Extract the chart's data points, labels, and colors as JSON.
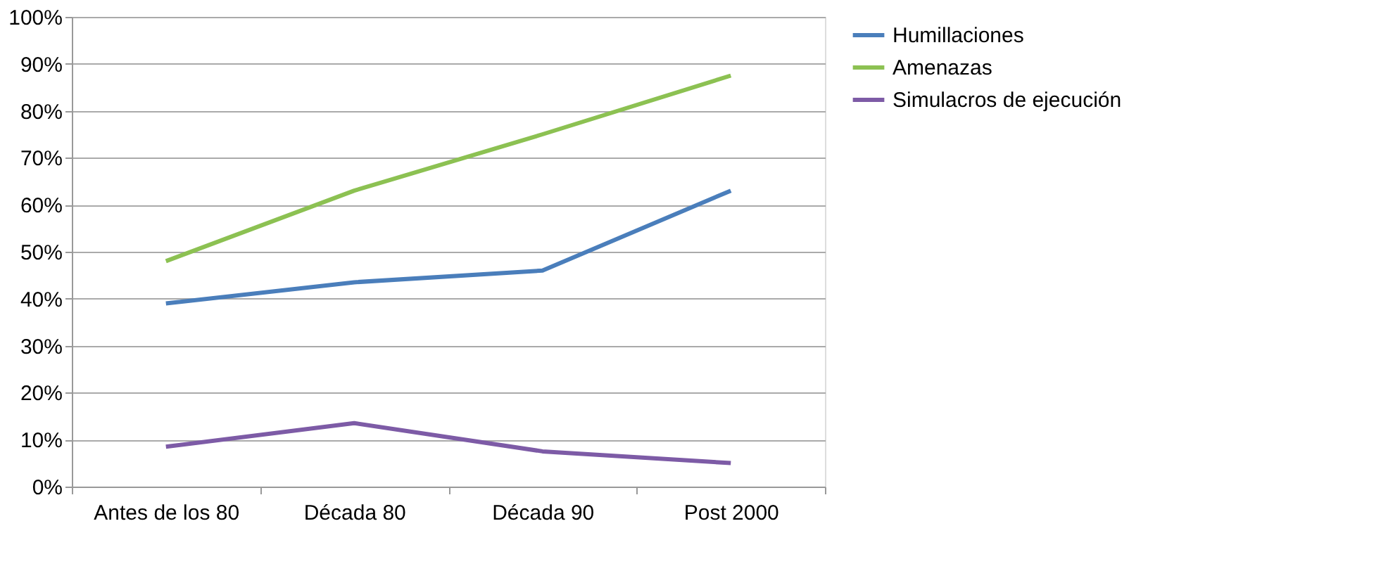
{
  "chart_data": {
    "type": "line",
    "categories": [
      "Antes de los 80",
      "Década 80",
      "Década 90",
      "Post 2000"
    ],
    "series": [
      {
        "name": "Humillaciones",
        "color": "#4a7ebb",
        "values": [
          0.39,
          0.435,
          0.46,
          0.63
        ]
      },
      {
        "name": "Amenazas",
        "color": "#8cc152",
        "values": [
          0.48,
          0.63,
          0.75,
          0.875
        ]
      },
      {
        "name": "Simulacros de ejecución",
        "color": "#7d5ba6",
        "values": [
          0.085,
          0.135,
          0.075,
          0.05
        ]
      }
    ],
    "ylim": [
      0,
      1
    ],
    "yticks": [
      {
        "value": 0,
        "label": "0%"
      },
      {
        "value": 0.1,
        "label": "10%"
      },
      {
        "value": 0.2,
        "label": "20%"
      },
      {
        "value": 0.3,
        "label": "30%"
      },
      {
        "value": 0.4,
        "label": "40%"
      },
      {
        "value": 0.5,
        "label": "50%"
      },
      {
        "value": 0.6,
        "label": "60%"
      },
      {
        "value": 0.7,
        "label": "70%"
      },
      {
        "value": 0.8,
        "label": "80%"
      },
      {
        "value": 0.9,
        "label": "90%"
      },
      {
        "value": 1,
        "label": "100%"
      }
    ],
    "grid": "y",
    "legend": "right",
    "marker": "none",
    "line_style": "solid"
  }
}
